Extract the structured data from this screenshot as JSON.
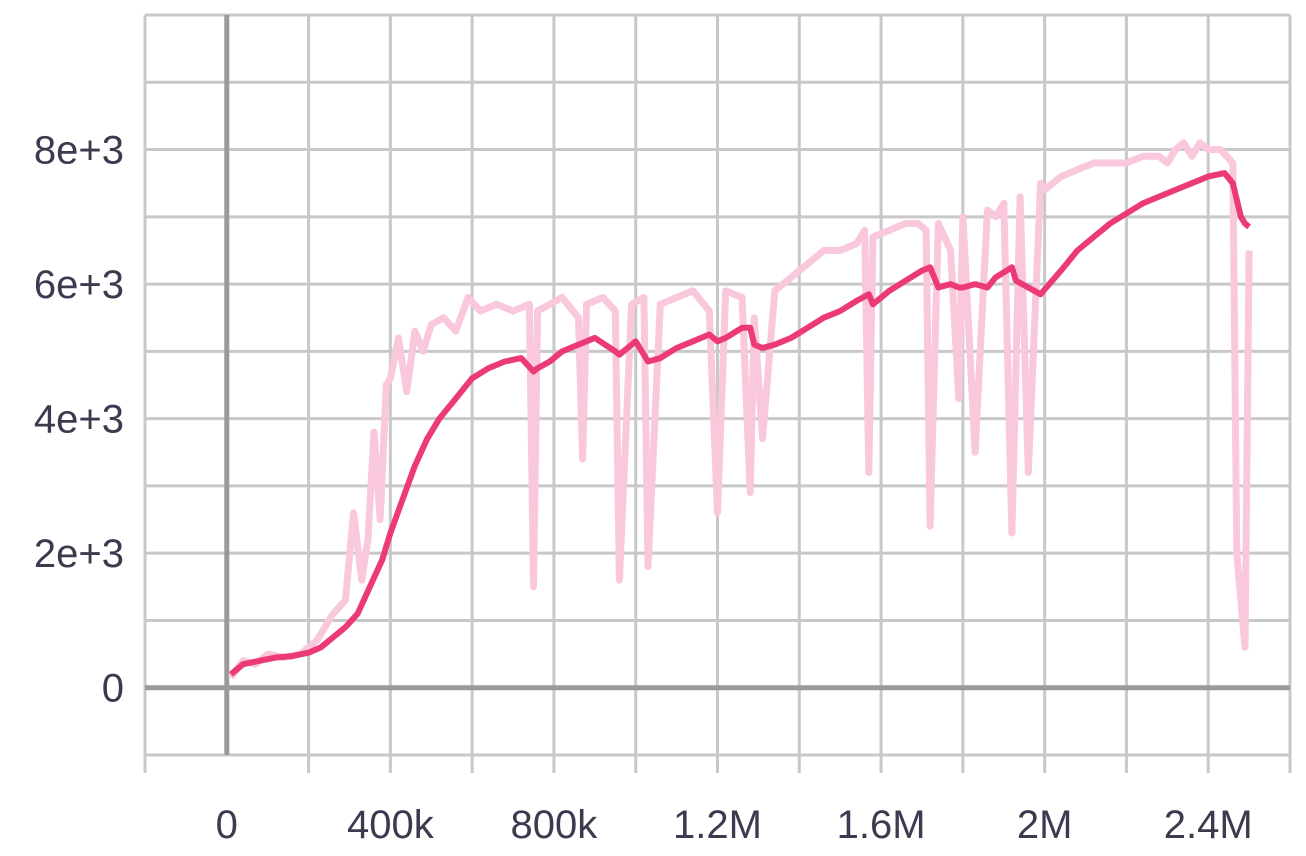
{
  "colors": {
    "series": "#ec3a78",
    "series_raw": "#f9c8dc",
    "grid": "#c8c8c8",
    "zero_axis": "#9a9a9a",
    "tick_text": "#3b3b4f"
  },
  "chart_data": {
    "type": "line",
    "title": "",
    "xlabel": "",
    "ylabel": "",
    "xlim": [
      -200000,
      2600000
    ],
    "ylim": [
      -1000,
      10000
    ],
    "grid": true,
    "x_ticks": [
      0,
      400000,
      800000,
      1200000,
      1600000,
      2000000,
      2400000
    ],
    "x_tick_labels": [
      "0",
      "400k",
      "800k",
      "1.2M",
      "1.6M",
      "2M",
      "2.4M"
    ],
    "y_ticks": [
      0,
      2000,
      4000,
      6000,
      8000
    ],
    "y_tick_labels": [
      "0",
      "2e+3",
      "4e+3",
      "6e+3",
      "8e+3"
    ],
    "series": [
      {
        "role": "raw",
        "x": [
          10000,
          40000,
          70000,
          100000,
          140000,
          180000,
          220000,
          260000,
          290000,
          310000,
          330000,
          345000,
          360000,
          375000,
          390000,
          400000,
          420000,
          440000,
          460000,
          480000,
          500000,
          530000,
          560000,
          590000,
          620000,
          660000,
          700000,
          740000,
          750000,
          760000,
          790000,
          820000,
          860000,
          870000,
          880000,
          920000,
          950000,
          960000,
          990000,
          1020000,
          1030000,
          1060000,
          1100000,
          1140000,
          1180000,
          1200000,
          1220000,
          1260000,
          1280000,
          1290000,
          1310000,
          1340000,
          1380000,
          1420000,
          1460000,
          1500000,
          1540000,
          1560000,
          1570000,
          1580000,
          1620000,
          1660000,
          1690000,
          1710000,
          1720000,
          1740000,
          1770000,
          1790000,
          1800000,
          1830000,
          1860000,
          1880000,
          1900000,
          1920000,
          1940000,
          1960000,
          1990000,
          2000000,
          2040000,
          2080000,
          2120000,
          2160000,
          2200000,
          2240000,
          2280000,
          2300000,
          2320000,
          2340000,
          2360000,
          2380000,
          2400000,
          2430000,
          2460000,
          2470000,
          2490000,
          2500000
        ],
        "y": [
          150,
          400,
          350,
          500,
          450,
          500,
          700,
          1100,
          1300,
          2600,
          1600,
          2200,
          3800,
          2500,
          4500,
          4600,
          5200,
          4400,
          5300,
          5000,
          5400,
          5500,
          5300,
          5800,
          5600,
          5700,
          5600,
          5700,
          1500,
          5600,
          5700,
          5800,
          5500,
          3400,
          5700,
          5800,
          5600,
          1600,
          5700,
          5800,
          1800,
          5700,
          5800,
          5900,
          5600,
          2600,
          5900,
          5800,
          2900,
          5500,
          3700,
          5900,
          6100,
          6300,
          6500,
          6500,
          6600,
          6800,
          3200,
          6700,
          6800,
          6900,
          6900,
          6800,
          2400,
          6900,
          6500,
          4300,
          7000,
          3500,
          7100,
          7000,
          7200,
          2300,
          7300,
          3200,
          7500,
          7400,
          7600,
          7700,
          7800,
          7800,
          7800,
          7900,
          7900,
          7800,
          8000,
          8100,
          7900,
          8100,
          8000,
          8000,
          7800,
          2000,
          600,
          6500
        ]
      },
      {
        "role": "smoothed",
        "x": [
          10000,
          40000,
          80000,
          120000,
          160000,
          200000,
          230000,
          260000,
          290000,
          320000,
          350000,
          380000,
          400000,
          430000,
          460000,
          490000,
          520000,
          560000,
          600000,
          640000,
          680000,
          720000,
          750000,
          760000,
          790000,
          820000,
          860000,
          900000,
          950000,
          960000,
          1000000,
          1030000,
          1060000,
          1100000,
          1140000,
          1180000,
          1200000,
          1220000,
          1260000,
          1280000,
          1290000,
          1310000,
          1340000,
          1380000,
          1420000,
          1460000,
          1500000,
          1540000,
          1570000,
          1580000,
          1620000,
          1660000,
          1700000,
          1720000,
          1740000,
          1770000,
          1790000,
          1800000,
          1830000,
          1860000,
          1880000,
          1920000,
          1930000,
          1960000,
          1990000,
          2040000,
          2080000,
          2120000,
          2160000,
          2200000,
          2240000,
          2280000,
          2320000,
          2360000,
          2400000,
          2440000,
          2460000,
          2480000,
          2490000,
          2500000
        ],
        "y": [
          200,
          350,
          400,
          450,
          470,
          520,
          600,
          750,
          900,
          1100,
          1500,
          1900,
          2300,
          2800,
          3300,
          3700,
          4000,
          4300,
          4600,
          4750,
          4850,
          4900,
          4700,
          4750,
          4850,
          5000,
          5100,
          5200,
          5000,
          4950,
          5150,
          4850,
          4900,
          5050,
          5150,
          5250,
          5150,
          5200,
          5350,
          5350,
          5100,
          5050,
          5100,
          5200,
          5350,
          5500,
          5600,
          5750,
          5850,
          5700,
          5900,
          6050,
          6200,
          6250,
          5950,
          6000,
          5950,
          5950,
          6000,
          5950,
          6100,
          6250,
          6050,
          5950,
          5850,
          6200,
          6500,
          6700,
          6900,
          7050,
          7200,
          7300,
          7400,
          7500,
          7600,
          7650,
          7500,
          7000,
          6900,
          6850
        ]
      }
    ]
  }
}
